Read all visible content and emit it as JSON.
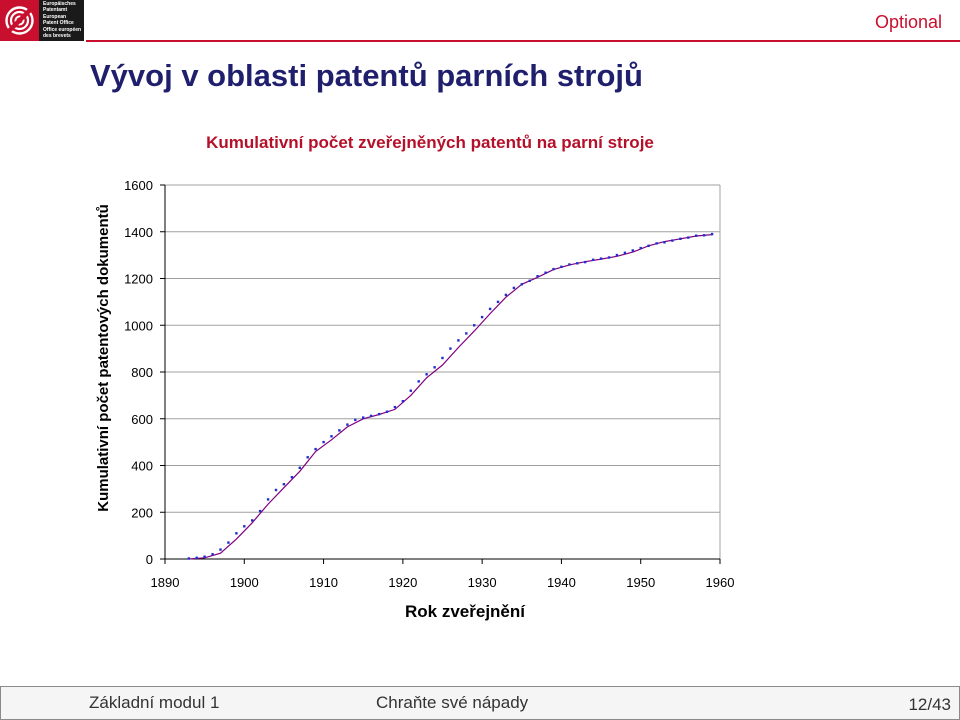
{
  "header": {
    "logo_lines": [
      "Europäisches",
      "Patentamt",
      "European",
      "Patent Office",
      "Office européen",
      "des brevets"
    ],
    "optional_label": "Optional"
  },
  "slide": {
    "title": "Vývoj v oblasti patentů parních strojů"
  },
  "footer": {
    "module": "Základní modul 1",
    "topic": "Chraňte své nápady",
    "page": "12/43"
  },
  "colors": {
    "brand_red": "#c8102e",
    "title_navy": "#1f1f6e",
    "chart_title_red": "#b5102a",
    "line": "#800080",
    "points": "#1f2ecc"
  },
  "chart_data": {
    "type": "scatter",
    "title": "Kumulativní počet zveřejněných patentů na parní stroje",
    "xlabel": "Rok zveřejnění",
    "ylabel": "Kumulativní počet patentových dokumentů",
    "xlim": [
      1890,
      1960
    ],
    "ylim": [
      0,
      1600
    ],
    "xticks": [
      "1890",
      "1900",
      "1910",
      "1920",
      "1930",
      "1940",
      "1950",
      "1960"
    ],
    "yticks": [
      "0",
      "200",
      "400",
      "600",
      "800",
      "1000",
      "1200",
      "1400",
      "1600"
    ],
    "grid": "horizontal",
    "legend": "none",
    "series": [
      {
        "kind": "points",
        "x": [
          1893,
          1894,
          1895,
          1896,
          1897,
          1898,
          1899,
          1900,
          1901,
          1902,
          1903,
          1904,
          1905,
          1906,
          1907,
          1908,
          1909,
          1910,
          1911,
          1912,
          1913,
          1914,
          1915,
          1916,
          1917,
          1918,
          1919,
          1920,
          1921,
          1922,
          1923,
          1924,
          1925,
          1926,
          1927,
          1928,
          1929,
          1930,
          1931,
          1932,
          1933,
          1934,
          1935,
          1936,
          1937,
          1938,
          1939,
          1940,
          1941,
          1942,
          1943,
          1944,
          1945,
          1946,
          1947,
          1948,
          1949,
          1950,
          1951,
          1952,
          1953,
          1954,
          1955,
          1956,
          1957,
          1958,
          1959
        ],
        "y": [
          2,
          5,
          10,
          20,
          40,
          70,
          110,
          140,
          165,
          205,
          255,
          295,
          320,
          350,
          390,
          435,
          470,
          500,
          525,
          550,
          575,
          595,
          605,
          612,
          620,
          630,
          650,
          675,
          720,
          760,
          790,
          820,
          860,
          900,
          935,
          965,
          1000,
          1035,
          1070,
          1100,
          1130,
          1160,
          1175,
          1190,
          1210,
          1225,
          1240,
          1250,
          1260,
          1265,
          1270,
          1280,
          1285,
          1290,
          1300,
          1310,
          1320,
          1330,
          1340,
          1350,
          1355,
          1362,
          1370,
          1375,
          1383,
          1385,
          1390
        ]
      },
      {
        "kind": "trend",
        "x": [
          1893,
          1895,
          1897,
          1899,
          1901,
          1903,
          1905,
          1907,
          1909,
          1911,
          1913,
          1915,
          1917,
          1919,
          1921,
          1923,
          1925,
          1927,
          1929,
          1931,
          1933,
          1935,
          1937,
          1939,
          1941,
          1943,
          1945,
          1947,
          1949,
          1951,
          1953,
          1955,
          1957,
          1959
        ],
        "y": [
          0,
          5,
          25,
          85,
          155,
          235,
          305,
          375,
          460,
          510,
          565,
          600,
          618,
          640,
          700,
          775,
          830,
          905,
          975,
          1050,
          1120,
          1175,
          1205,
          1238,
          1258,
          1272,
          1283,
          1295,
          1313,
          1340,
          1358,
          1370,
          1382,
          1388
        ]
      }
    ]
  }
}
